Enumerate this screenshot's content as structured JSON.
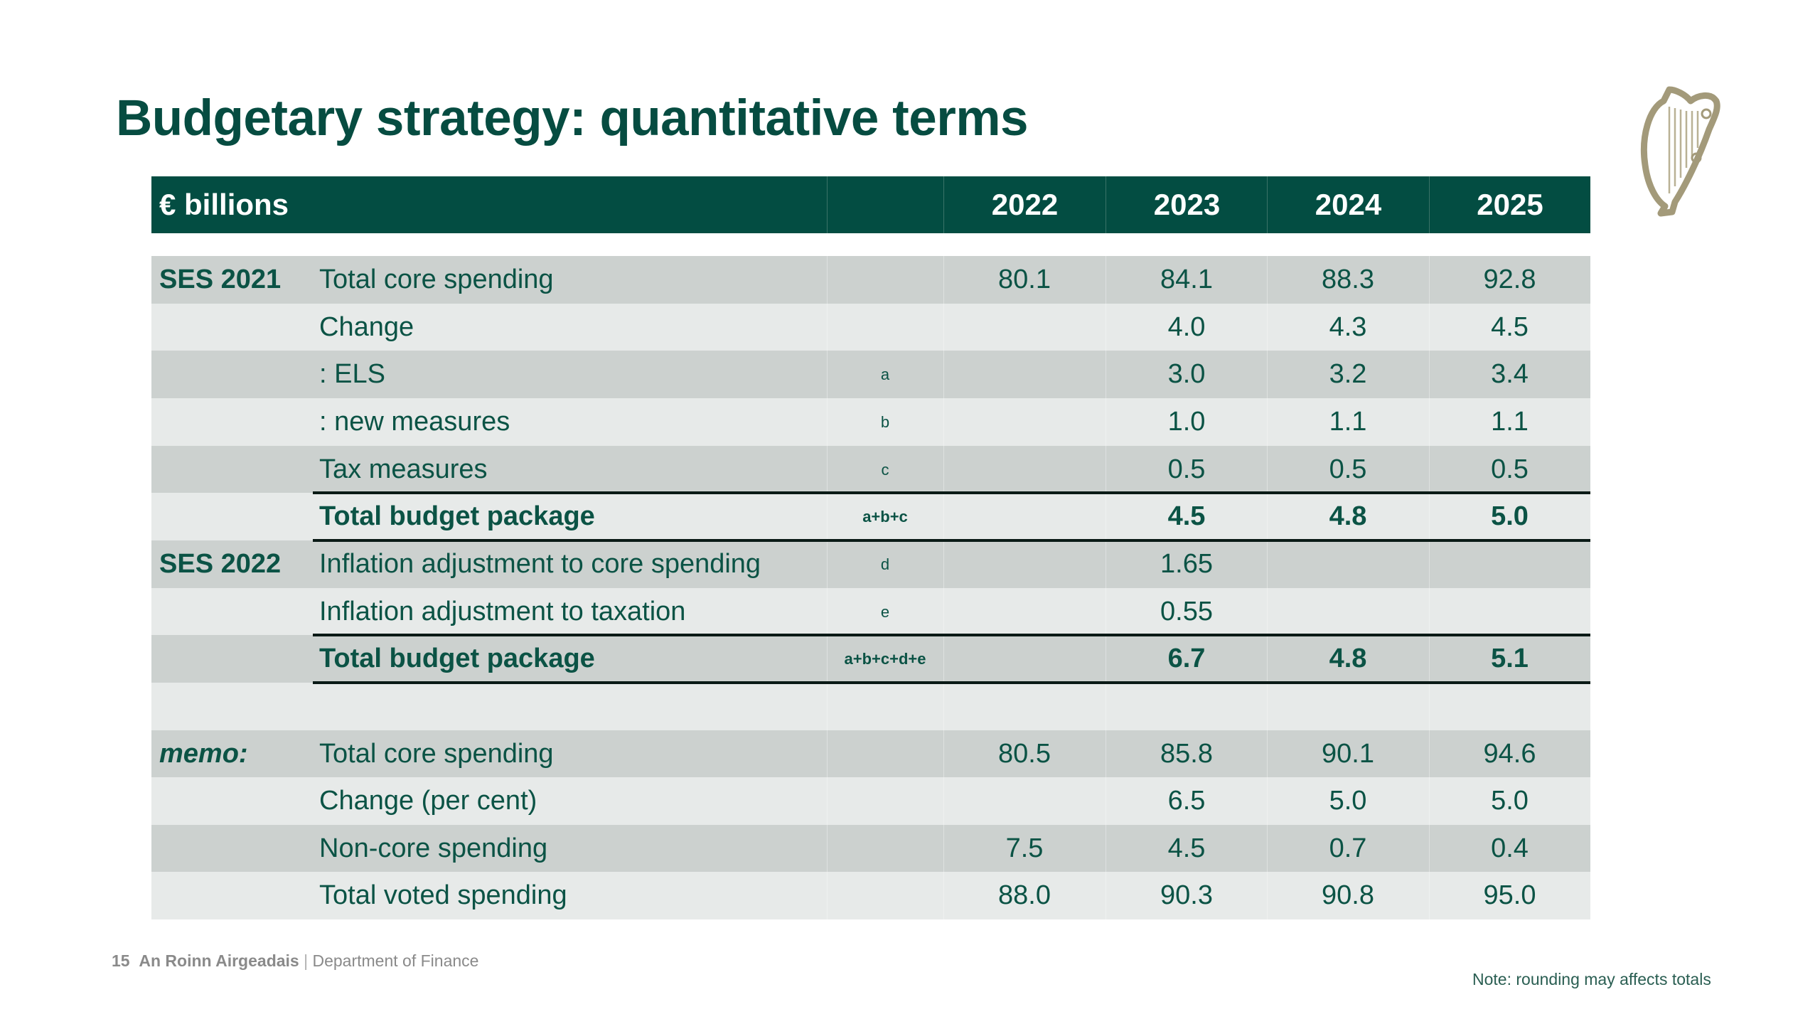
{
  "slide": {
    "title": "Budgetary strategy: quantitative terms",
    "logo": "harp-emblem-icon"
  },
  "table": {
    "unit_label": "€ billions",
    "years": [
      "2022",
      "2023",
      "2024",
      "2025"
    ],
    "rows": [
      {
        "group": "SES 2021",
        "label": "Total core spending",
        "formula": "",
        "values": [
          "80.1",
          "84.1",
          "88.3",
          "92.8"
        ],
        "bold": false
      },
      {
        "group": "",
        "label": "Change",
        "formula": "",
        "values": [
          "",
          "4.0",
          "4.3",
          "4.5"
        ],
        "bold": false
      },
      {
        "group": "",
        "label": ": ELS",
        "formula": "a",
        "values": [
          "",
          "3.0",
          "3.2",
          "3.4"
        ],
        "bold": false
      },
      {
        "group": "",
        "label": ": new measures",
        "formula": "b",
        "values": [
          "",
          "1.0",
          "1.1",
          "1.1"
        ],
        "bold": false
      },
      {
        "group": "",
        "label": "Tax measures",
        "formula": "c",
        "values": [
          "",
          "0.5",
          "0.5",
          "0.5"
        ],
        "bold": false
      },
      {
        "group": "",
        "label": "Total budget package",
        "formula": "a+b+c",
        "values": [
          "",
          "4.5",
          "4.8",
          "5.0"
        ],
        "bold": true
      },
      {
        "group": "SES 2022",
        "label": "Inflation adjustment to core spending",
        "formula": "d",
        "values": [
          "",
          "1.65",
          "",
          ""
        ],
        "bold": false
      },
      {
        "group": "",
        "label": "Inflation adjustment to taxation",
        "formula": "e",
        "values": [
          "",
          "0.55",
          "",
          ""
        ],
        "bold": false
      },
      {
        "group": "",
        "label": "Total budget package",
        "formula": "a+b+c+d+e",
        "values": [
          "",
          "6.7",
          "4.8",
          "5.1"
        ],
        "bold": true
      },
      {
        "group": "",
        "label": "",
        "formula": "",
        "values": [
          "",
          "",
          "",
          ""
        ],
        "bold": false
      },
      {
        "group": "memo:",
        "label": "Total core spending",
        "formula": "",
        "values": [
          "80.5",
          "85.8",
          "90.1",
          "94.6"
        ],
        "bold": false
      },
      {
        "group": "",
        "label": "Change (per cent)",
        "formula": "",
        "values": [
          "",
          "6.5",
          "5.0",
          "5.0"
        ],
        "bold": false
      },
      {
        "group": "",
        "label": "Non-core spending",
        "formula": "",
        "values": [
          "7.5",
          "4.5",
          "0.7",
          "0.4"
        ],
        "bold": false
      },
      {
        "group": "",
        "label": "Total voted spending",
        "formula": "",
        "values": [
          "88.0",
          "90.3",
          "90.8",
          "95.0"
        ],
        "bold": false
      }
    ]
  },
  "footer": {
    "page_number": "15",
    "department_irish": "An Roinn Airgeadais",
    "separator": "|",
    "department_english": "Department of Finance",
    "note": "Note: rounding may affects totals"
  },
  "colors": {
    "header_bg": "#034d42",
    "row_grey": "#ccd1cf",
    "row_light": "#e7eae9",
    "text_green": "#0b5345",
    "emblem_gold": "#a39a7a"
  }
}
